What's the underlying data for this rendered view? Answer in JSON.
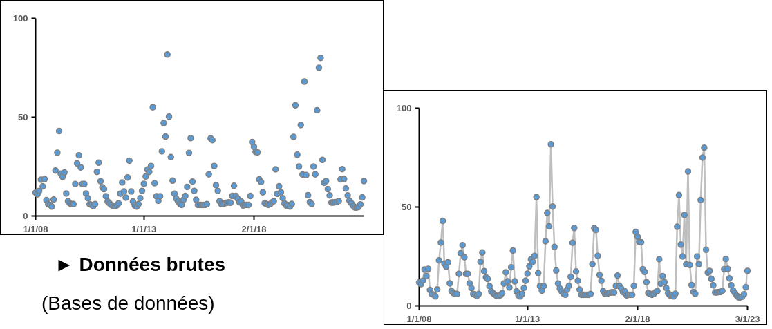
{
  "chart_data": [
    {
      "type": "scatter",
      "marker": "circle",
      "xlim": [
        "2008-01-01",
        "2023-03-01"
      ],
      "ylim": [
        0,
        100
      ],
      "yticks": [
        0,
        50,
        100
      ],
      "xticks": [
        {
          "value": "2008-01-01",
          "label": "1/1/08"
        },
        {
          "value": "2013-01-01",
          "label": "1/1/13"
        },
        {
          "value": "2018-02-01",
          "label": "2/1/18"
        }
      ],
      "x": [
        "2008-01",
        "2008-02",
        "2008-03",
        "2008-04",
        "2008-05",
        "2008-06",
        "2008-07",
        "2008-08",
        "2008-09",
        "2008-10",
        "2008-11",
        "2008-12",
        "2009-01",
        "2009-02",
        "2009-03",
        "2009-04",
        "2009-05",
        "2009-06",
        "2009-07",
        "2009-08",
        "2009-09",
        "2009-10",
        "2009-11",
        "2009-12",
        "2010-01",
        "2010-02",
        "2010-03",
        "2010-04",
        "2010-05",
        "2010-06",
        "2010-07",
        "2010-08",
        "2010-09",
        "2010-10",
        "2010-11",
        "2010-12",
        "2011-01",
        "2011-02",
        "2011-03",
        "2011-04",
        "2011-05",
        "2011-06",
        "2011-07",
        "2011-08",
        "2011-09",
        "2011-10",
        "2011-11",
        "2011-12",
        "2012-01",
        "2012-02",
        "2012-03",
        "2012-04",
        "2012-05",
        "2012-06",
        "2012-07",
        "2012-08",
        "2012-09",
        "2012-10",
        "2012-11",
        "2012-12",
        "2013-01",
        "2013-02",
        "2013-03",
        "2013-04",
        "2013-05",
        "2013-06",
        "2013-07",
        "2013-08",
        "2013-09",
        "2013-10",
        "2013-11",
        "2013-12",
        "2014-01",
        "2014-02",
        "2014-03",
        "2014-04",
        "2014-05",
        "2014-06",
        "2014-07",
        "2014-08",
        "2014-09",
        "2014-10",
        "2014-11",
        "2014-12",
        "2015-01",
        "2015-02",
        "2015-03",
        "2015-04",
        "2015-05",
        "2015-06",
        "2015-07",
        "2015-08",
        "2015-09",
        "2015-10",
        "2015-11",
        "2015-12",
        "2016-01",
        "2016-02",
        "2016-03",
        "2016-04",
        "2016-05",
        "2016-06",
        "2016-07",
        "2016-08",
        "2016-09",
        "2016-10",
        "2016-11",
        "2016-12",
        "2017-01",
        "2017-02",
        "2017-03",
        "2017-04",
        "2017-05",
        "2017-06",
        "2017-07",
        "2017-08",
        "2017-09",
        "2017-10",
        "2017-11",
        "2017-12",
        "2018-01",
        "2018-02",
        "2018-03",
        "2018-04",
        "2018-05",
        "2018-06",
        "2018-07",
        "2018-08",
        "2018-09",
        "2018-10",
        "2018-11",
        "2018-12",
        "2019-01",
        "2019-02",
        "2019-03",
        "2019-04",
        "2019-05",
        "2019-06",
        "2019-07",
        "2019-08",
        "2019-09",
        "2019-10",
        "2019-11",
        "2019-12",
        "2020-01",
        "2020-02",
        "2020-03",
        "2020-04",
        "2020-05",
        "2020-06",
        "2020-07",
        "2020-08",
        "2020-09",
        "2020-10",
        "2020-11",
        "2020-12",
        "2021-01",
        "2021-02",
        "2021-03",
        "2021-04",
        "2021-05",
        "2021-06",
        "2021-07",
        "2021-08",
        "2021-09",
        "2021-10",
        "2021-11",
        "2021-12",
        "2022-01",
        "2022-02",
        "2022-03",
        "2022-04",
        "2022-05",
        "2022-06",
        "2022-07",
        "2022-08",
        "2022-09",
        "2022-10",
        "2022-11",
        "2022-12",
        "2023-01",
        "2023-02",
        "2023-03"
      ],
      "series": [
        {
          "color": "#5b9bd5",
          "values": [
            11.8,
            11,
            12.7,
            18.4,
            15,
            18.7,
            8,
            6,
            5.6,
            4.8,
            8.3,
            23,
            32,
            43,
            21.4,
            19.8,
            22,
            11.4,
            7.5,
            6.4,
            6,
            6,
            16.2,
            26.6,
            30.7,
            24.6,
            16.2,
            16.2,
            11.4,
            9,
            6,
            5.6,
            5,
            6,
            22.3,
            27,
            17.6,
            14.5,
            13.6,
            10,
            7.3,
            6.4,
            5.6,
            5,
            5,
            5.4,
            6.4,
            11.3,
            17,
            12.4,
            9.3,
            19.5,
            28,
            12.4,
            7.3,
            5.3,
            4.8,
            6,
            9,
            12.7,
            16.3,
            20,
            23.5,
            22.3,
            25.3,
            55,
            16.6,
            10,
            7.7,
            10,
            32.7,
            47,
            40.2,
            81.7,
            50.3,
            29.8,
            17.9,
            11.3,
            8.8,
            7.3,
            6.2,
            5.6,
            8.2,
            10.1,
            14.7,
            31.9,
            39.4,
            17.4,
            12.7,
            8.2,
            5.6,
            5.6,
            5.6,
            5.6,
            5.6,
            6,
            21.1,
            39.3,
            38.4,
            25.3,
            15.6,
            12.7,
            7.5,
            6,
            6,
            6.5,
            6.7,
            6.9,
            6.7,
            10.1,
            15.3,
            10.1,
            8.8,
            6.9,
            7.3,
            5.3,
            5.6,
            5.6,
            5.6,
            10.1,
            37.4,
            35,
            32.4,
            32.2,
            18.5,
            17.2,
            12,
            6.5,
            6,
            5.6,
            6,
            6.9,
            7.5,
            23.6,
            11.2,
            15,
            12,
            9,
            6.4,
            5.3,
            5.5,
            4.8,
            6.1,
            40,
            56,
            31,
            25,
            46,
            21,
            68,
            20.7,
            10.5,
            7,
            6.1,
            25,
            21.1,
            53.5,
            75,
            80,
            28.4,
            16.8,
            17.7,
            13.6,
            10.4,
            6.8,
            6.8,
            7,
            7,
            7.6,
            18.5,
            23.7,
            18.7,
            13.9,
            10.4,
            7.8,
            6.5,
            5.2,
            4.3,
            4.3,
            4.6,
            5.9,
            9.4,
            17.7
          ]
        }
      ]
    },
    {
      "type": "line",
      "marker": "circle",
      "xlim": [
        "2008-01-01",
        "2023-03-01"
      ],
      "ylim": [
        0,
        100
      ],
      "yticks": [
        0,
        50,
        100
      ],
      "xticks": [
        {
          "value": "2008-01-01",
          "label": "1/1/08"
        },
        {
          "value": "2013-01-01",
          "label": "1/1/13"
        },
        {
          "value": "2018-02-01",
          "label": "2/1/18"
        },
        {
          "value": "2023-03-01",
          "label": "3/1/23"
        }
      ],
      "x": [
        "2008-01",
        "2008-02",
        "2008-03",
        "2008-04",
        "2008-05",
        "2008-06",
        "2008-07",
        "2008-08",
        "2008-09",
        "2008-10",
        "2008-11",
        "2008-12",
        "2009-01",
        "2009-02",
        "2009-03",
        "2009-04",
        "2009-05",
        "2009-06",
        "2009-07",
        "2009-08",
        "2009-09",
        "2009-10",
        "2009-11",
        "2009-12",
        "2010-01",
        "2010-02",
        "2010-03",
        "2010-04",
        "2010-05",
        "2010-06",
        "2010-07",
        "2010-08",
        "2010-09",
        "2010-10",
        "2010-11",
        "2010-12",
        "2011-01",
        "2011-02",
        "2011-03",
        "2011-04",
        "2011-05",
        "2011-06",
        "2011-07",
        "2011-08",
        "2011-09",
        "2011-10",
        "2011-11",
        "2011-12",
        "2012-01",
        "2012-02",
        "2012-03",
        "2012-04",
        "2012-05",
        "2012-06",
        "2012-07",
        "2012-08",
        "2012-09",
        "2012-10",
        "2012-11",
        "2012-12",
        "2013-01",
        "2013-02",
        "2013-03",
        "2013-04",
        "2013-05",
        "2013-06",
        "2013-07",
        "2013-08",
        "2013-09",
        "2013-10",
        "2013-11",
        "2013-12",
        "2014-01",
        "2014-02",
        "2014-03",
        "2014-04",
        "2014-05",
        "2014-06",
        "2014-07",
        "2014-08",
        "2014-09",
        "2014-10",
        "2014-11",
        "2014-12",
        "2015-01",
        "2015-02",
        "2015-03",
        "2015-04",
        "2015-05",
        "2015-06",
        "2015-07",
        "2015-08",
        "2015-09",
        "2015-10",
        "2015-11",
        "2015-12",
        "2016-01",
        "2016-02",
        "2016-03",
        "2016-04",
        "2016-05",
        "2016-06",
        "2016-07",
        "2016-08",
        "2016-09",
        "2016-10",
        "2016-11",
        "2016-12",
        "2017-01",
        "2017-02",
        "2017-03",
        "2017-04",
        "2017-05",
        "2017-06",
        "2017-07",
        "2017-08",
        "2017-09",
        "2017-10",
        "2017-11",
        "2017-12",
        "2018-01",
        "2018-02",
        "2018-03",
        "2018-04",
        "2018-05",
        "2018-06",
        "2018-07",
        "2018-08",
        "2018-09",
        "2018-10",
        "2018-11",
        "2018-12",
        "2019-01",
        "2019-02",
        "2019-03",
        "2019-04",
        "2019-05",
        "2019-06",
        "2019-07",
        "2019-08",
        "2019-09",
        "2019-10",
        "2019-11",
        "2019-12",
        "2020-01",
        "2020-02",
        "2020-03",
        "2020-04",
        "2020-05",
        "2020-06",
        "2020-07",
        "2020-08",
        "2020-09",
        "2020-10",
        "2020-11",
        "2020-12",
        "2021-01",
        "2021-02",
        "2021-03",
        "2021-04",
        "2021-05",
        "2021-06",
        "2021-07",
        "2021-08",
        "2021-09",
        "2021-10",
        "2021-11",
        "2021-12",
        "2022-01",
        "2022-02",
        "2022-03",
        "2022-04",
        "2022-05",
        "2022-06",
        "2022-07",
        "2022-08",
        "2022-09",
        "2022-10",
        "2022-11",
        "2022-12",
        "2023-01",
        "2023-02",
        "2023-03"
      ],
      "series": [
        {
          "color": "#5b9bd5",
          "values": [
            11.8,
            11,
            12.7,
            18.4,
            15,
            18.7,
            8,
            6,
            5.6,
            4.8,
            8.3,
            23,
            32,
            43,
            21.4,
            19.8,
            22,
            11.4,
            7.5,
            6.4,
            6,
            6,
            16.2,
            26.6,
            30.7,
            24.6,
            16.2,
            16.2,
            11.4,
            9,
            6,
            5.6,
            5,
            6,
            22.3,
            27,
            17.6,
            14.5,
            13.6,
            10,
            7.3,
            6.4,
            5.6,
            5,
            5,
            5.4,
            6.4,
            11.3,
            17,
            12.4,
            9.3,
            19.5,
            28,
            12.4,
            7.3,
            5.3,
            4.8,
            6,
            9,
            12.7,
            16.3,
            20,
            23.5,
            22.3,
            25.3,
            55,
            16.6,
            10,
            7.7,
            10,
            32.7,
            47,
            40.2,
            81.7,
            50.3,
            29.8,
            17.9,
            11.3,
            8.8,
            7.3,
            6.2,
            5.6,
            8.2,
            10.1,
            14.7,
            31.9,
            39.4,
            17.4,
            12.7,
            8.2,
            5.6,
            5.6,
            5.6,
            5.6,
            5.6,
            6,
            21.1,
            39.3,
            38.4,
            25.3,
            15.6,
            12.7,
            7.5,
            6,
            6,
            6.5,
            6.7,
            6.9,
            6.7,
            10.1,
            15.3,
            10.1,
            8.8,
            6.9,
            7.3,
            5.3,
            5.6,
            5.6,
            5.6,
            10.1,
            37.4,
            35,
            32.4,
            32.2,
            18.5,
            17.2,
            12,
            6.5,
            6,
            5.6,
            6,
            6.9,
            7.5,
            23.6,
            11.2,
            15,
            12,
            9,
            6.4,
            5.3,
            5.5,
            4.8,
            6.1,
            40,
            56,
            31,
            25,
            46,
            21,
            68,
            20.7,
            10.5,
            7,
            6.1,
            25,
            21.1,
            53.5,
            75,
            80,
            28.4,
            16.8,
            17.7,
            13.6,
            10.4,
            6.8,
            6.8,
            7,
            7,
            7.6,
            18.5,
            23.7,
            18.7,
            13.9,
            10.4,
            7.8,
            6.5,
            5.2,
            4.3,
            4.3,
            4.6,
            5.9,
            9.4,
            17.7
          ]
        }
      ]
    },
    {
      "type": "other",
      "title": "► Données brutes",
      "subtitle": "(Bases de données)"
    }
  ]
}
